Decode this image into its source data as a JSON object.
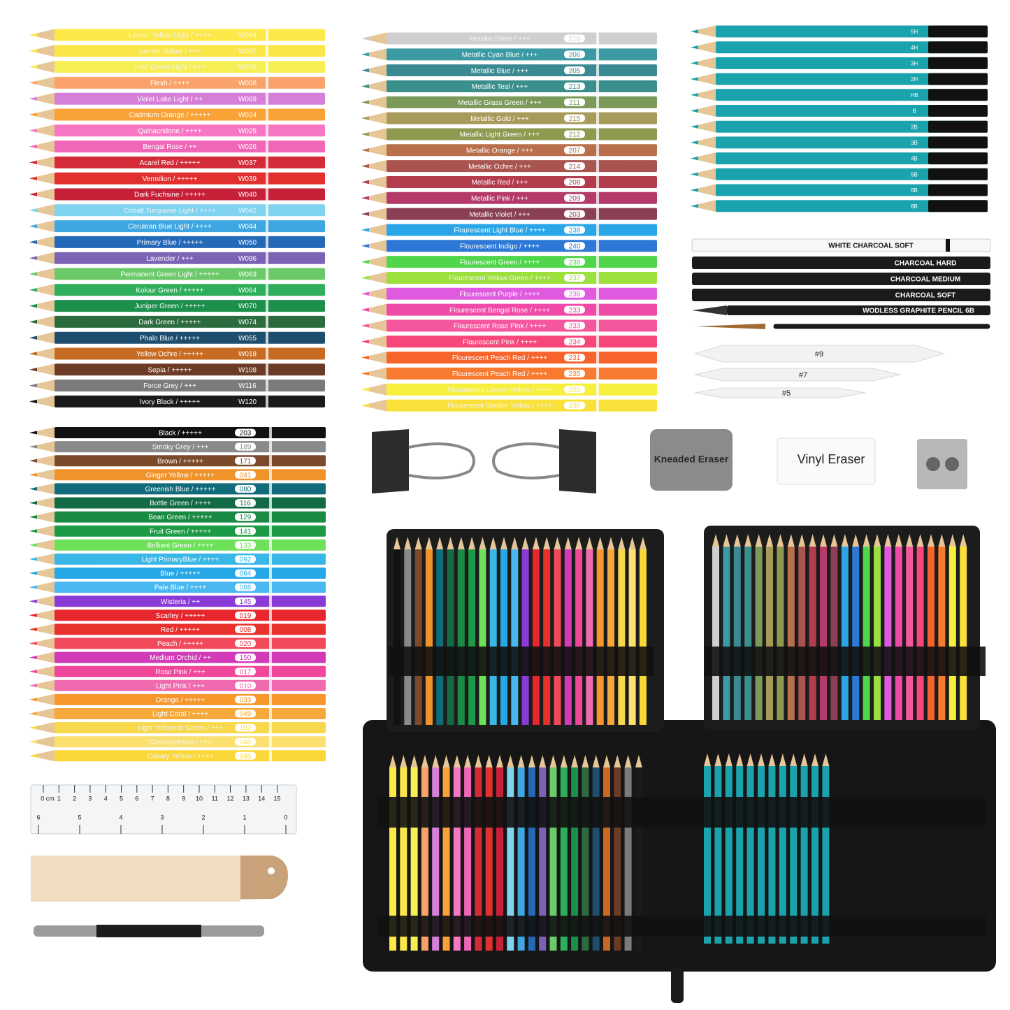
{
  "watercolor": {
    "pencils": [
      {
        "label": "Lemon Yellow Light  /  ++++",
        "code": "W004",
        "color": "#fde84a"
      },
      {
        "label": "Lemon Yellow  /  +++",
        "code": "W007",
        "color": "#fbe64a"
      },
      {
        "label": "Leaf Green Light  /  +++",
        "code": "W059",
        "color": "#f6ee55"
      },
      {
        "label": "Flesh  /  ++++",
        "code": "W008",
        "color": "#f9a36a"
      },
      {
        "label": "Violet Lake Light  /  ++",
        "code": "W069",
        "color": "#d67fd8"
      },
      {
        "label": "Cadmium Orange  /  +++++",
        "code": "W024",
        "color": "#f9a235"
      },
      {
        "label": "Quinacridone  /  ++++",
        "code": "W025",
        "color": "#f777c4"
      },
      {
        "label": "Bengal Rose  /  ++",
        "code": "W026",
        "color": "#f067b8"
      },
      {
        "label": "Acarel Red  /  +++++",
        "code": "W037",
        "color": "#d42b39"
      },
      {
        "label": "Vermilion  /  +++++",
        "code": "W039",
        "color": "#e2302f"
      },
      {
        "label": "Dark Fuchsine  /  +++++",
        "code": "W040",
        "color": "#c7213a"
      },
      {
        "label": "Cobalt Turquoise Light  /  ++++",
        "code": "W042",
        "color": "#7fd3ef"
      },
      {
        "label": "Cerulean Blue Light  /  ++++",
        "code": "W044",
        "color": "#3ea6e0"
      },
      {
        "label": "Primary Blue  /  +++++",
        "code": "W050",
        "color": "#2468b8"
      },
      {
        "label": "Lavender  /  +++",
        "code": "W096",
        "color": "#7c62b5"
      },
      {
        "label": "Permanent Green Light  /  +++++",
        "code": "W063",
        "color": "#6cc96a"
      },
      {
        "label": "Kolour Green  /  +++++",
        "code": "W064",
        "color": "#2eae5a"
      },
      {
        "label": "Juniper Green  /  +++++",
        "code": "W070",
        "color": "#1c8f4b"
      },
      {
        "label": "Dark Green  /  +++++",
        "code": "W074",
        "color": "#2b6b3e"
      },
      {
        "label": "Phalo Blue  /  +++++",
        "code": "W055",
        "color": "#1e4e6e"
      },
      {
        "label": "Yellow Ochre  /  +++++",
        "code": "W018",
        "color": "#c86b22"
      },
      {
        "label": "Sepia  /  +++++",
        "code": "W108",
        "color": "#6b3b26"
      },
      {
        "label": "Force Grey  /  +++",
        "code": "W116",
        "color": "#7c7a7c"
      },
      {
        "label": "Ivory Black  /  +++++",
        "code": "W120",
        "color": "#1a1a1a"
      }
    ]
  },
  "metallic": {
    "pencils": [
      {
        "label": "Metallic Silver  /  +++",
        "code": "216",
        "color": "#cfcfcf"
      },
      {
        "label": "Metallic Cyan Blue  /  +++",
        "code": "206",
        "color": "#3b9aa3"
      },
      {
        "label": "Metallic Blue  /  +++",
        "code": "205",
        "color": "#3b8a93"
      },
      {
        "label": "Metallic Teal  /  +++",
        "code": "213",
        "color": "#3a8f8c"
      },
      {
        "label": "Metallic Grass Green  /  +++",
        "code": "211",
        "color": "#7b9a5a"
      },
      {
        "label": "Metallic Gold  /  +++",
        "code": "215",
        "color": "#a89a5a"
      },
      {
        "label": "Metallic Light Green  /  +++",
        "code": "212",
        "color": "#8f9a50"
      },
      {
        "label": "Metallic Orange  /  +++",
        "code": "207",
        "color": "#b96f4b"
      },
      {
        "label": "Metallic Ochre  /  +++",
        "code": "214",
        "color": "#a9544f"
      },
      {
        "label": "Metallic Red  /  +++",
        "code": "208",
        "color": "#b33c4d"
      },
      {
        "label": "Metallic Pink  /  +++",
        "code": "209",
        "color": "#b53a6a"
      },
      {
        "label": "Metallic Violet  /  +++",
        "code": "203",
        "color": "#8a3f55"
      },
      {
        "label": "Flourescent Light Blue  /  ++++",
        "code": "238",
        "color": "#2aa6e8"
      },
      {
        "label": "Flourescent Indigo  /  ++++",
        "code": "240",
        "color": "#2d78d6"
      },
      {
        "label": "Flourescent Green  /  ++++",
        "code": "236",
        "color": "#4fd64a"
      },
      {
        "label": "Flourescent Yellow Green  /  ++++",
        "code": "237",
        "color": "#9be03c"
      },
      {
        "label": "Flourescent Purple  /  ++++",
        "code": "239",
        "color": "#e05ae0"
      },
      {
        "label": "Flourescent Bengal Rose  /  ++++",
        "code": "233",
        "color": "#f04aa8"
      },
      {
        "label": "Flourescent Rose Pink  /  ++++",
        "code": "233",
        "color": "#f5579e"
      },
      {
        "label": "Flourescent  Pink  /  ++++",
        "code": "234",
        "color": "#f7467a"
      },
      {
        "label": "Flourescent Peach Red  /  ++++",
        "code": "231",
        "color": "#f7642b"
      },
      {
        "label": "Flourescent Peach Red  /  ++++",
        "code": "235",
        "color": "#f77a30"
      },
      {
        "label": "Flourescent Lemon Yellow  /  ++++",
        "code": "228",
        "color": "#f7ef3e"
      },
      {
        "label": "Flourescent  Golden Yellow  /  ++++",
        "code": "230",
        "color": "#f9e03a"
      }
    ]
  },
  "sketch": {
    "color": "#1aa3ad",
    "pencils": [
      "5H",
      "4H",
      "3H",
      "2H",
      "HB",
      "B",
      "2B",
      "3B",
      "4B",
      "5B",
      "6B",
      "8B"
    ]
  },
  "charcoal": [
    "WHITE CHARCOAL  SOFT",
    "CHARCOAL  HARD",
    "CHARCOAL  MEDIUM",
    "CHARCOAL  SOFT",
    "WODLESS GRAPHITE PENCIL 6B"
  ],
  "stumps": [
    "#9",
    "#7",
    "#5"
  ],
  "oil": {
    "pencils": [
      {
        "label": "Black  /  +++++",
        "code": "203",
        "color": "#111111"
      },
      {
        "label": "Smoky Grey  /  +++",
        "code": "189",
        "color": "#8a8a8a"
      },
      {
        "label": "Brown  /  +++++",
        "code": "171",
        "color": "#7a4a2a"
      },
      {
        "label": "Ginger Yellow  /  +++++",
        "code": "041",
        "color": "#f0932b"
      },
      {
        "label": "Greenish Blue  /  +++++",
        "code": "080",
        "color": "#116b7a"
      },
      {
        "label": "Bottle Green  /  ++++",
        "code": "116",
        "color": "#136b45"
      },
      {
        "label": "Bean Green  /  +++++",
        "code": "129",
        "color": "#1a8a45"
      },
      {
        "label": "Fruit Green  /  +++++",
        "code": "141",
        "color": "#1c9a45"
      },
      {
        "label": "Brilliant Green  /  ++++",
        "code": "133",
        "color": "#6ee05a"
      },
      {
        "label": "Light PrimaryBlue  /  ++++",
        "code": "092",
        "color": "#39b8e8"
      },
      {
        "label": "Blue  /  +++++",
        "code": "084",
        "color": "#25a8e8"
      },
      {
        "label": "Pale Blue  /  ++++",
        "code": "088",
        "color": "#4ab8f0"
      },
      {
        "label": "Wisteria  /  ++",
        "code": "145",
        "color": "#8a3ad6"
      },
      {
        "label": "Scarley  /  +++++",
        "code": "019",
        "color": "#e8262e"
      },
      {
        "label": "Red  /  +++++",
        "code": "008",
        "color": "#e8302c"
      },
      {
        "label": "Peach  /  +++++",
        "code": "020",
        "color": "#f24a5a"
      },
      {
        "label": "Medium Orchid  /  ++",
        "code": "150",
        "color": "#d23ab8"
      },
      {
        "label": "Rose Pink  /  +++",
        "code": "017",
        "color": "#f0479a"
      },
      {
        "label": "Light Pink  /  +++",
        "code": "010",
        "color": "#f06ab0"
      },
      {
        "label": "Orange  /  +++++",
        "code": "033",
        "color": "#f7962a"
      },
      {
        "label": "Light Coral  /  ++++",
        "code": "049",
        "color": "#f7a83a"
      },
      {
        "label": "Light Yellowish Green  /  +++",
        "code": "102",
        "color": "#f7d84a"
      },
      {
        "label": "CreamyYellow  /  +++",
        "code": "046",
        "color": "#fbe070"
      },
      {
        "label": "Cabary Yellow  /  ++++",
        "code": "045",
        "color": "#fbd83a"
      }
    ]
  },
  "erasers": {
    "kneaded": "Kneaded Eraser",
    "vinyl": "Vinyl Eraser"
  },
  "ruler": {
    "cm": [
      "0 cm",
      "1",
      "2",
      "3",
      "4",
      "5",
      "6",
      "7",
      "8",
      "9",
      "10",
      "11",
      "12",
      "13",
      "14",
      "15"
    ],
    "inch": [
      "6",
      "5",
      "4",
      "3",
      "2",
      "1",
      "0"
    ]
  }
}
